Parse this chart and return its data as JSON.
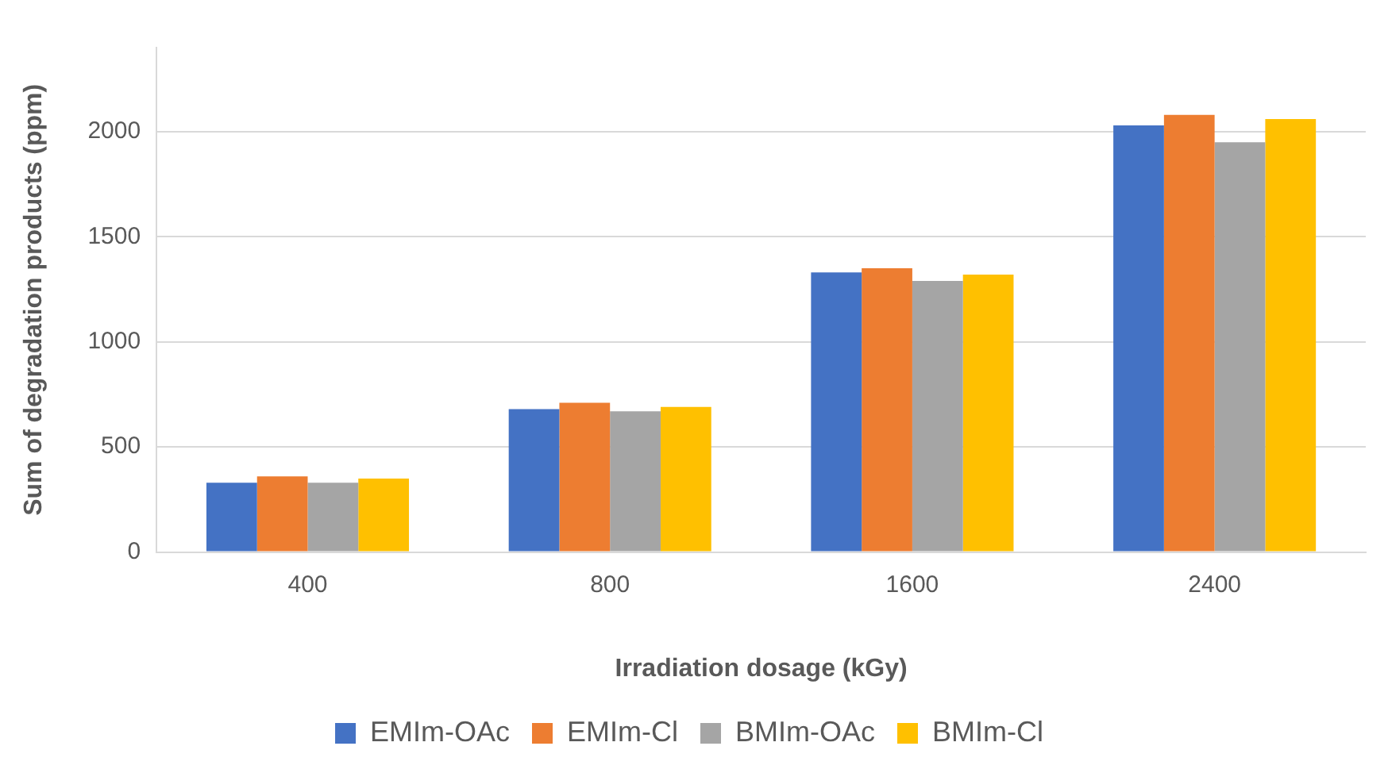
{
  "chart_data": {
    "type": "bar",
    "xlabel": "Irradiation dosage (kGy)",
    "ylabel": "Sum of degradation products (ppm)",
    "categories": [
      "400",
      "800",
      "1600",
      "2400"
    ],
    "series": [
      {
        "name": "EMIm-OAc",
        "color": "#4472c4",
        "values": [
          330,
          680,
          1330,
          2030
        ]
      },
      {
        "name": "EMIm-Cl",
        "color": "#ed7d31",
        "values": [
          360,
          710,
          1350,
          2080
        ]
      },
      {
        "name": "BMIm-OAc",
        "color": "#a5a5a5",
        "values": [
          330,
          670,
          1290,
          1950
        ]
      },
      {
        "name": "BMIm-Cl",
        "color": "#ffc000",
        "values": [
          350,
          690,
          1320,
          2060
        ]
      }
    ],
    "ylim": [
      0,
      2400
    ],
    "yticks": [
      0,
      500,
      1000,
      1500,
      2000
    ],
    "grid": "y",
    "legend": "bottom"
  }
}
